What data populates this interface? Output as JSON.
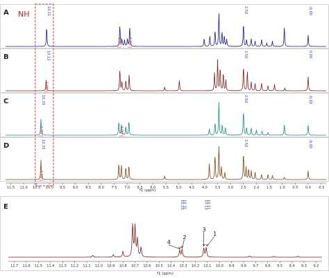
{
  "chart_data": {
    "type": "line",
    "panels_top": [
      {
        "label": "A",
        "color": "#1a1a8c",
        "peaks": [
          [
            10.11,
            0.55
          ],
          [
            7.28,
            0.6
          ],
          [
            7.2,
            0.2
          ],
          [
            7.1,
            0.18
          ],
          [
            6.99,
            0.2
          ],
          [
            6.9,
            0.55
          ],
          [
            4.02,
            0.22
          ],
          [
            3.8,
            0.3
          ],
          [
            3.6,
            0.45
          ],
          [
            3.45,
            0.95
          ],
          [
            3.33,
            0.4
          ],
          [
            3.24,
            0.3
          ],
          [
            3.15,
            0.2
          ],
          [
            2.5,
            0.65
          ],
          [
            2.38,
            0.2
          ],
          [
            2.2,
            0.22
          ],
          [
            2.05,
            0.15
          ],
          [
            1.8,
            0.2
          ],
          [
            1.6,
            0.1
          ],
          [
            1.38,
            0.15
          ],
          [
            0.92,
            0.55
          ],
          [
            0.0,
            0.32
          ]
        ],
        "integrals": [
          {
            "x": 7.3,
            "text": "1.00"
          },
          {
            "x": 6.9,
            "text": "1.00"
          }
        ],
        "labels": [
          {
            "x": 10.11,
            "text": "10.11"
          },
          {
            "x": 2.5,
            "text": "2.50"
          },
          {
            "x": 0.0,
            "text": "-0.00"
          }
        ]
      },
      {
        "label": "B",
        "color": "#8b1a1a",
        "peaks": [
          [
            10.13,
            0.3
          ],
          [
            7.28,
            0.6
          ],
          [
            7.2,
            0.25
          ],
          [
            7.05,
            0.3
          ],
          [
            6.92,
            0.45
          ],
          [
            5.55,
            0.1
          ],
          [
            4.98,
            0.3
          ],
          [
            3.62,
            0.5
          ],
          [
            3.5,
            0.85
          ],
          [
            3.4,
            0.65
          ],
          [
            3.28,
            0.5
          ],
          [
            3.18,
            0.3
          ],
          [
            2.5,
            0.7
          ],
          [
            2.35,
            0.55
          ],
          [
            2.2,
            0.25
          ],
          [
            2.05,
            0.2
          ],
          [
            1.8,
            0.22
          ],
          [
            1.55,
            0.15
          ],
          [
            1.3,
            0.18
          ],
          [
            0.9,
            0.08
          ],
          [
            0.0,
            0.4
          ]
        ],
        "integrals": [
          {
            "x": 10.13,
            "text": "1.00"
          }
        ],
        "labels": [
          {
            "x": 10.13,
            "text": "10.13"
          },
          {
            "x": 2.5,
            "text": "2.50"
          },
          {
            "x": 0.0,
            "text": "0.00"
          }
        ]
      },
      {
        "label": "C",
        "color": "#1a8a8a",
        "peaks": [
          [
            10.33,
            0.45
          ],
          [
            7.32,
            0.38
          ],
          [
            7.22,
            0.3
          ],
          [
            7.05,
            0.25
          ],
          [
            6.93,
            0.4
          ],
          [
            3.82,
            0.18
          ],
          [
            3.6,
            0.35
          ],
          [
            3.45,
            0.95
          ],
          [
            3.32,
            0.3
          ],
          [
            3.2,
            0.22
          ],
          [
            2.5,
            0.7
          ],
          [
            2.38,
            0.22
          ],
          [
            2.2,
            0.2
          ],
          [
            2.0,
            0.15
          ],
          [
            1.78,
            0.12
          ],
          [
            1.55,
            0.08
          ],
          [
            0.92,
            0.3
          ],
          [
            0.0,
            0.28
          ]
        ],
        "integrals": [
          {
            "x": 10.33,
            "text": "1.00"
          },
          {
            "x": 7.22,
            "text": "1.00"
          }
        ],
        "labels": [
          {
            "x": 10.33,
            "text": "10.33"
          },
          {
            "x": 2.5,
            "text": "2.50"
          },
          {
            "x": 0.0,
            "text": "-0.00"
          }
        ]
      },
      {
        "label": "D",
        "color": "#7a4a1a",
        "peaks": [
          [
            10.33,
            0.55
          ],
          [
            7.32,
            0.45
          ],
          [
            7.22,
            0.4
          ],
          [
            7.05,
            0.35
          ],
          [
            6.93,
            0.4
          ],
          [
            5.55,
            0.1
          ],
          [
            3.82,
            0.45
          ],
          [
            3.6,
            0.7
          ],
          [
            3.45,
            0.95
          ],
          [
            3.35,
            0.35
          ],
          [
            3.22,
            0.2
          ],
          [
            2.5,
            0.75
          ],
          [
            2.4,
            0.35
          ],
          [
            2.3,
            0.3
          ],
          [
            2.2,
            0.25
          ],
          [
            2.05,
            0.2
          ],
          [
            1.8,
            0.15
          ],
          [
            1.55,
            0.15
          ],
          [
            1.38,
            0.12
          ],
          [
            0.92,
            0.06
          ],
          [
            0.0,
            0.25
          ]
        ],
        "integrals": [
          {
            "x": 10.33,
            "text": "1.00"
          }
        ],
        "labels": [
          {
            "x": 10.33,
            "text": "10.33"
          },
          {
            "x": 2.5,
            "text": "2.50"
          },
          {
            "x": 0.0,
            "text": "-0.00"
          }
        ]
      }
    ],
    "top_axis": {
      "ticks": [
        "11.5",
        "11.0",
        "10.5",
        "10.0",
        "9.5",
        "9.0",
        "8.5",
        "8.0",
        "7.5",
        "7.0",
        "6.5",
        "6.0",
        "5.5",
        "5.0",
        "4.5",
        "4.0",
        "3.5",
        "3.0",
        "2.5",
        "2.0",
        "1.5",
        "1.0",
        "0.5",
        "0.0",
        "-0.5"
      ],
      "xlim": [
        11.7,
        -0.7
      ],
      "xlabel": "f1 (ppm)"
    },
    "nh_label": "NH",
    "panel_e": {
      "label": "E",
      "color": "#8b1a1a",
      "xlim": [
        11.75,
        9.15
      ],
      "ticks": [
        "11.7",
        "11.6",
        "11.5",
        "11.4",
        "11.3",
        "11.2",
        "11.1",
        "11.0",
        "10.9",
        "10.8",
        "10.7",
        "10.6",
        "10.5",
        "10.4",
        "10.3",
        "10.2",
        "10.1",
        "10.0",
        "9.9",
        "9.8",
        "9.7",
        "9.6",
        "9.5",
        "9.4",
        "9.3",
        "9.2"
      ],
      "xlabel": "f1 (ppm)",
      "peaks": [
        [
          10.72,
          1.0
        ],
        [
          10.7,
          0.95
        ],
        [
          10.68,
          0.55
        ],
        [
          10.65,
          0.3
        ],
        [
          10.8,
          0.18
        ],
        [
          10.88,
          0.08
        ],
        [
          11.05,
          0.06
        ],
        [
          10.33,
          0.22
        ],
        [
          10.31,
          0.24
        ],
        [
          10.13,
          0.28
        ],
        [
          10.11,
          0.3
        ],
        [
          9.75,
          0.04
        ],
        [
          9.55,
          0.03
        ],
        [
          9.35,
          0.03
        ]
      ],
      "peak_labels": [
        {
          "x": 10.33,
          "text": "10.33"
        },
        {
          "x": 10.31,
          "text": "10.31"
        },
        {
          "x": 10.13,
          "text": "10.13"
        },
        {
          "x": 10.11,
          "text": "10.11"
        }
      ],
      "annotations": [
        {
          "num": "4",
          "x": 10.33
        },
        {
          "num": "2",
          "x": 10.31
        },
        {
          "num": "3",
          "x": 10.13
        },
        {
          "num": "1",
          "x": 10.11
        }
      ]
    }
  }
}
